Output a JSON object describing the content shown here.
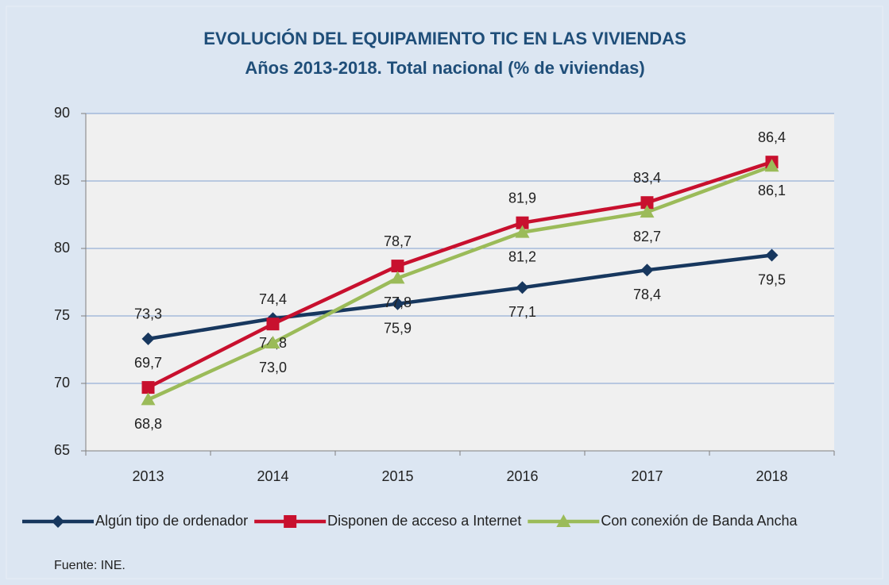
{
  "chart_data": {
    "type": "line",
    "title": "EVOLUCIÓN DEL EQUIPAMIENTO TIC EN LAS VIVIENDAS",
    "subtitle": "Años 2013-2018. Total nacional (% de viviendas)",
    "categories": [
      "2013",
      "2014",
      "2015",
      "2016",
      "2017",
      "2018"
    ],
    "series": [
      {
        "name": "Algún tipo de ordenador",
        "color": "#17375e",
        "marker": "diamond",
        "values": [
          73.3,
          74.8,
          75.9,
          77.1,
          78.4,
          79.5
        ],
        "value_labels": [
          "73,3",
          "74,8",
          "75,9",
          "77,1",
          "78,4",
          "79,5"
        ]
      },
      {
        "name": "Disponen de acceso a Internet",
        "color": "#c8102e",
        "marker": "square",
        "values": [
          69.7,
          74.4,
          78.7,
          81.9,
          83.4,
          86.4
        ],
        "value_labels": [
          "69,7",
          "74,4",
          "78,7",
          "81,9",
          "83,4",
          "86,4"
        ]
      },
      {
        "name": "Con conexión de Banda Ancha",
        "color": "#9bbb59",
        "marker": "triangle",
        "values": [
          68.8,
          73.0,
          77.8,
          81.2,
          82.7,
          86.1
        ],
        "value_labels": [
          "68,8",
          "73,0",
          "77,8",
          "81,2",
          "82,7",
          "86,1"
        ]
      }
    ],
    "ylim": [
      65,
      90
    ],
    "yticks": [
      65,
      70,
      75,
      80,
      85,
      90
    ],
    "grid": true,
    "legend": "bottom",
    "source": "Fuente: INE."
  }
}
